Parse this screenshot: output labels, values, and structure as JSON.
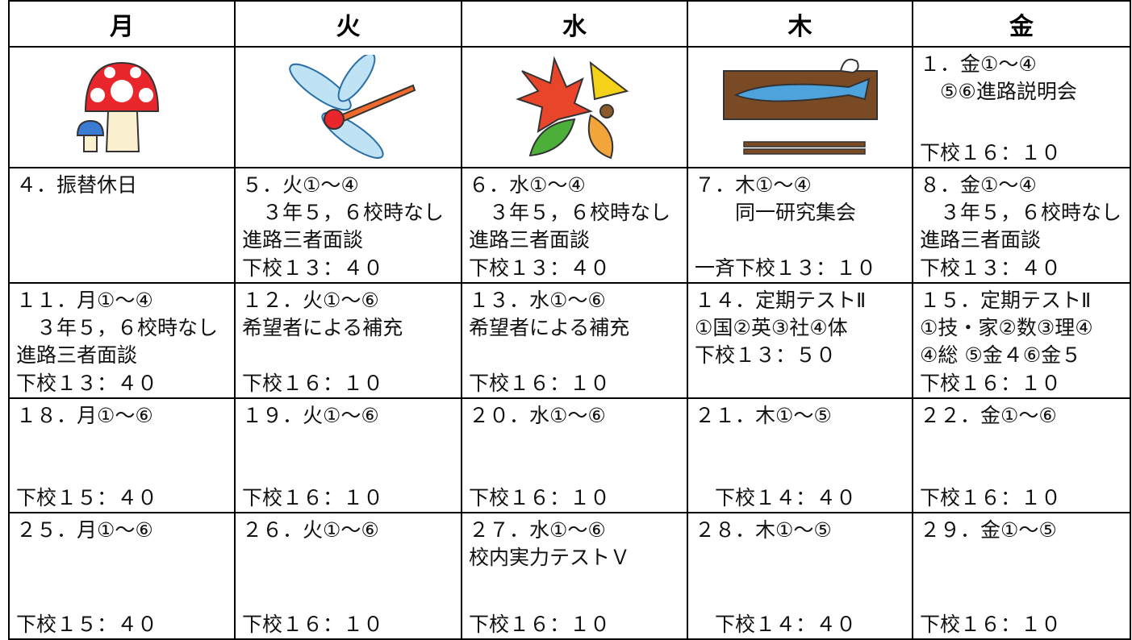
{
  "header": {
    "days": [
      "月",
      "火",
      "水",
      "木",
      "金"
    ]
  },
  "rows": [
    {
      "cells": [
        null,
        null,
        null,
        null,
        {
          "lines": [
            "１．金①～④",
            "　⑤⑥進路説明会"
          ],
          "dismissal": "下校１６：１０"
        }
      ]
    },
    {
      "cells": [
        {
          "lines": [
            "４．振替休日"
          ]
        },
        {
          "lines": [
            "５．火①～④",
            "　３年５，６校時なし",
            "進路三者面談"
          ],
          "dismissal": "下校１３：４０"
        },
        {
          "lines": [
            "６．水①～④",
            "　３年５，６校時なし",
            "進路三者面談"
          ],
          "dismissal": "下校１３：４０"
        },
        {
          "lines": [
            "７．木①～④",
            "　　同一研究集会"
          ],
          "dismissal": "一斉下校１３：１０"
        },
        {
          "lines": [
            "８．金①～④",
            "　３年５，６校時なし",
            "進路三者面談"
          ],
          "dismissal": "下校１３：４０"
        }
      ]
    },
    {
      "cells": [
        {
          "lines": [
            "１１．月①～④",
            "　３年５，６校時なし",
            "進路三者面談"
          ],
          "dismissal": "下校１３：４０"
        },
        {
          "lines": [
            "１２．火①～⑥",
            "希望者による補充"
          ],
          "dismissal": "下校１６：１０"
        },
        {
          "lines": [
            "１３．水①～⑥",
            "希望者による補充"
          ],
          "dismissal": "下校１６：１０"
        },
        {
          "lines": [
            "１４．定期テストⅡ",
            "①国②英③社④体",
            "下校１３：５０"
          ]
        },
        {
          "lines": [
            "１５．定期テストⅡ",
            "①技・家②数③理④",
            "④総 ⑤金４⑥金５"
          ],
          "dismissal": "下校１６：１０"
        }
      ]
    },
    {
      "cells": [
        {
          "lines": [
            "１８．月①～⑥"
          ],
          "dismissal": "下校１５：４０"
        },
        {
          "lines": [
            "１９．火①～⑥"
          ],
          "dismissal": "下校１６：１０"
        },
        {
          "lines": [
            "２０．水①～⑥"
          ],
          "dismissal": "下校１６：１０"
        },
        {
          "lines": [
            "２１．木①～⑤"
          ],
          "dismissal": "　下校１４：４０"
        },
        {
          "lines": [
            "２２．金①～⑥"
          ],
          "dismissal": "下校１６：１０"
        }
      ]
    },
    {
      "cells": [
        {
          "lines": [
            "２５．月①～⑥"
          ],
          "dismissal": "下校１５：４０"
        },
        {
          "lines": [
            "２６．火①～⑥"
          ],
          "dismissal": "下校１６：１０"
        },
        {
          "lines": [
            "２７．水①～⑥",
            "校内実力テストＶ"
          ],
          "dismissal": "下校１６：１０"
        },
        {
          "lines": [
            "２８．木①～⑤"
          ],
          "dismissal": "　下校１４：４０"
        },
        {
          "lines": [
            "２９．金①～⑤"
          ],
          "dismissal": "下校１６：１０"
        }
      ]
    }
  ]
}
